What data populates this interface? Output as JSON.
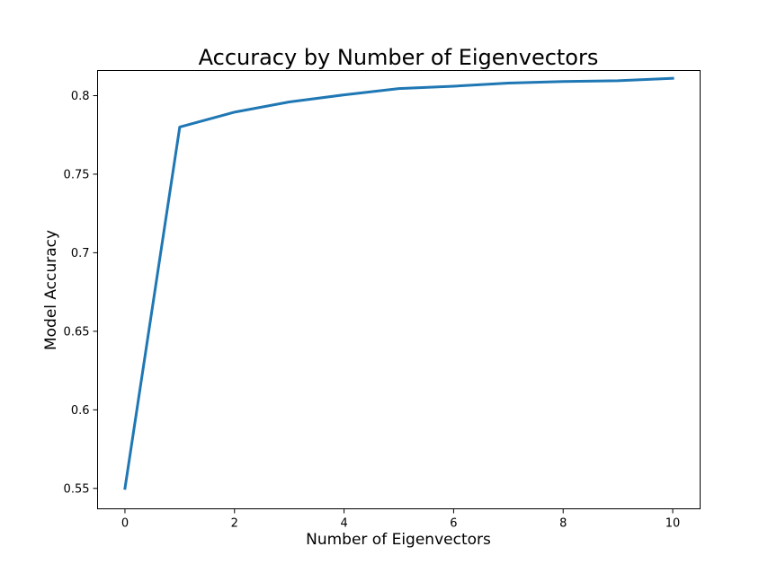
{
  "chart_data": {
    "type": "line",
    "title": "Accuracy by Number of Eigenvectors",
    "xlabel": "Number of Eigenvectors",
    "ylabel": "Model Accuracy",
    "xlim": [
      -0.5,
      10.5
    ],
    "ylim": [
      0.537,
      0.816
    ],
    "x_ticks": [
      0,
      2,
      4,
      6,
      8,
      10
    ],
    "x_tick_labels": [
      "0",
      "2",
      "4",
      "6",
      "8",
      "10"
    ],
    "y_ticks": [
      0.55,
      0.6,
      0.65,
      0.7,
      0.75,
      0.8
    ],
    "y_tick_labels": [
      "0.55",
      "0.6",
      "0.65",
      "0.7",
      "0.75",
      "0.8"
    ],
    "grid": false,
    "legend": "none",
    "series": [
      {
        "color": "#1f77b4",
        "x": [
          0,
          1,
          2,
          3,
          4,
          5,
          6,
          7,
          8,
          9,
          10
        ],
        "y": [
          0.55,
          0.78,
          0.7895,
          0.796,
          0.8005,
          0.8045,
          0.806,
          0.808,
          0.809,
          0.8095,
          0.811
        ]
      }
    ]
  }
}
